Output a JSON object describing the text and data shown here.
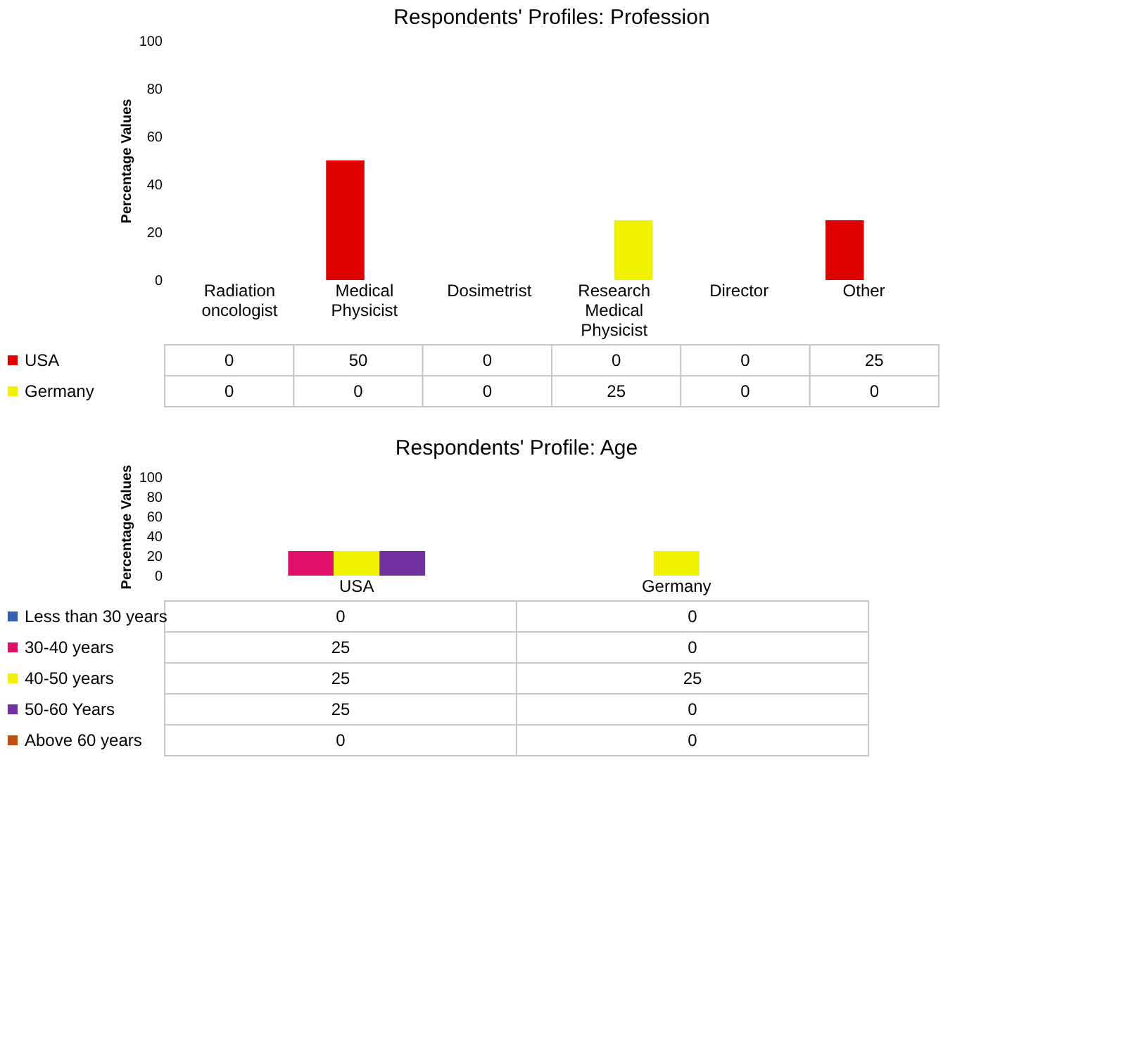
{
  "chart_data": [
    {
      "type": "bar",
      "title": "Respondents' Profiles: Profession",
      "ylabel": "Percentage Values",
      "categories": [
        "Radiation oncologist",
        "Medical Physicist",
        "Dosimetrist",
        "Research Medical Physicist",
        "Director",
        "Other"
      ],
      "series": [
        {
          "name": "USA",
          "color": "#e00000",
          "values": [
            0,
            50,
            0,
            0,
            0,
            25
          ]
        },
        {
          "name": "Germany",
          "color": "#f0f000",
          "values": [
            0,
            0,
            0,
            25,
            0,
            0
          ]
        }
      ],
      "ylim": [
        0,
        100
      ],
      "yticks": [
        0,
        20,
        40,
        60,
        80,
        100
      ],
      "grid": false,
      "data_labels": true,
      "legend": "bottom"
    },
    {
      "type": "bar",
      "title": "Respondents' Profile: Age",
      "ylabel": "Percentage Values",
      "categories": [
        "USA",
        "Germany"
      ],
      "series": [
        {
          "name": "Less than 30 years",
          "color": "#3060b0",
          "values": [
            0,
            0
          ]
        },
        {
          "name": "30-40 years",
          "color": "#e0106a",
          "values": [
            25,
            0
          ]
        },
        {
          "name": "40-50 years",
          "color": "#f0f000",
          "values": [
            25,
            25
          ]
        },
        {
          "name": "50-60 Years",
          "color": "#7030a0",
          "values": [
            25,
            0
          ]
        },
        {
          "name": "Above 60 years",
          "color": "#c05010",
          "values": [
            0,
            0
          ]
        }
      ],
      "ylim": [
        0,
        100
      ],
      "yticks": [
        0,
        20,
        40,
        60,
        80,
        100
      ],
      "grid": false,
      "data_labels": true,
      "legend": "bottom"
    }
  ]
}
